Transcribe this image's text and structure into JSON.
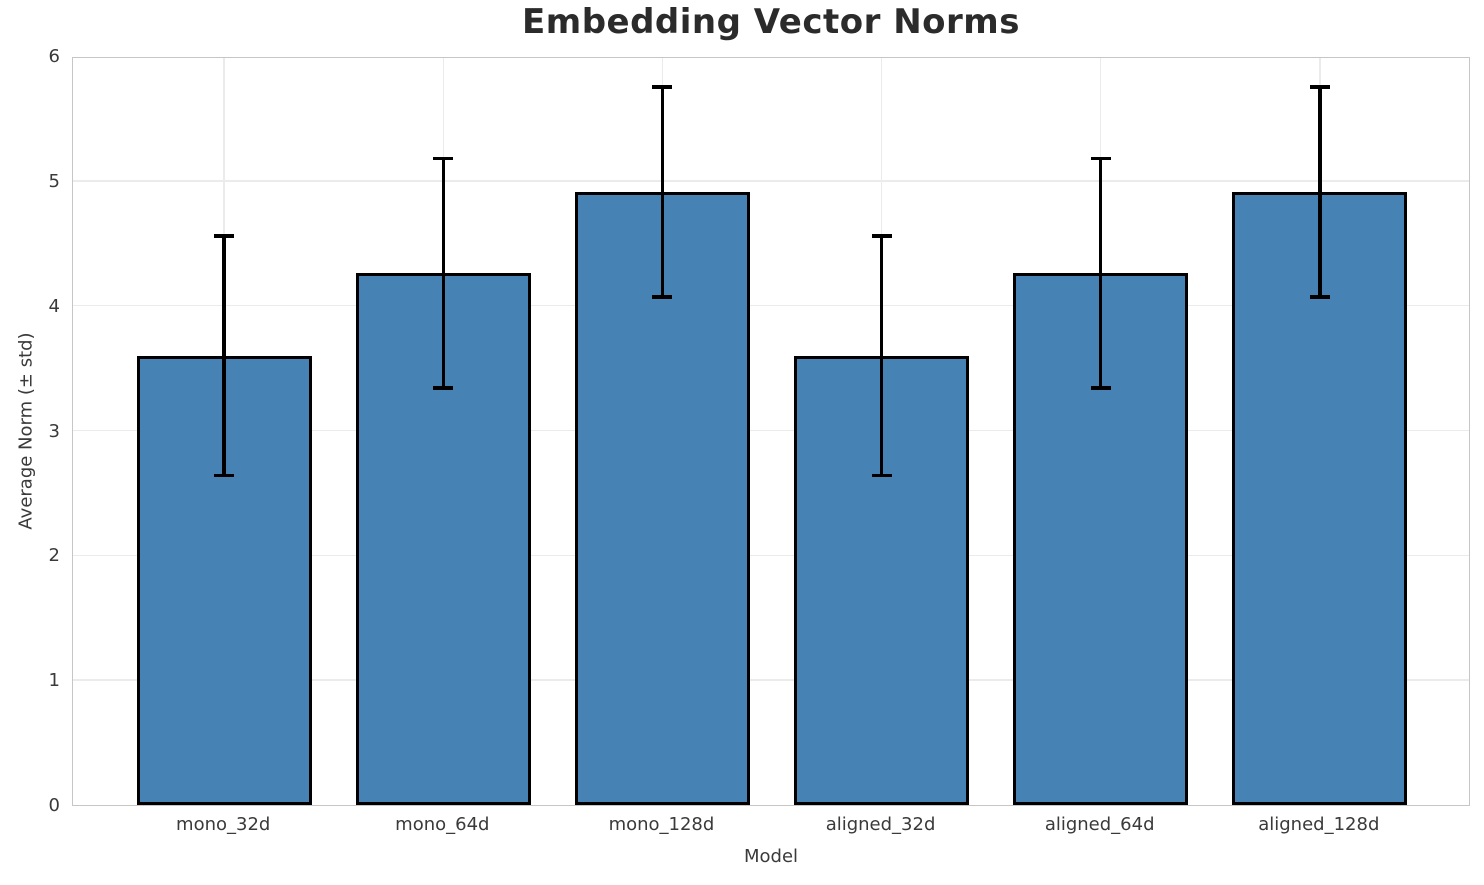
{
  "chart_data": {
    "type": "bar",
    "title": "Embedding Vector Norms",
    "xlabel": "Model",
    "ylabel": "Average Norm (± std)",
    "categories": [
      "mono_32d",
      "mono_64d",
      "mono_128d",
      "aligned_32d",
      "aligned_64d",
      "aligned_128d"
    ],
    "values": [
      3.6,
      4.26,
      4.91,
      3.6,
      4.26,
      4.91
    ],
    "errors": [
      0.96,
      0.92,
      0.84,
      0.96,
      0.92,
      0.84
    ],
    "yticks": [
      0,
      1,
      2,
      3,
      4,
      5,
      6
    ],
    "ylim": [
      0,
      6
    ],
    "xlim": [
      -0.69,
      5.69
    ],
    "bar_width_fraction": 0.8,
    "grid": true,
    "legend": "none",
    "colors": {
      "bar_fill": "#4682B4",
      "bar_edge": "#000000",
      "error_bar": "#000000",
      "grid_line": "#ebebeb",
      "spine": "#c6c6c6",
      "tick_text": "#3a3a3a",
      "title_text": "#2b2b2b"
    }
  }
}
